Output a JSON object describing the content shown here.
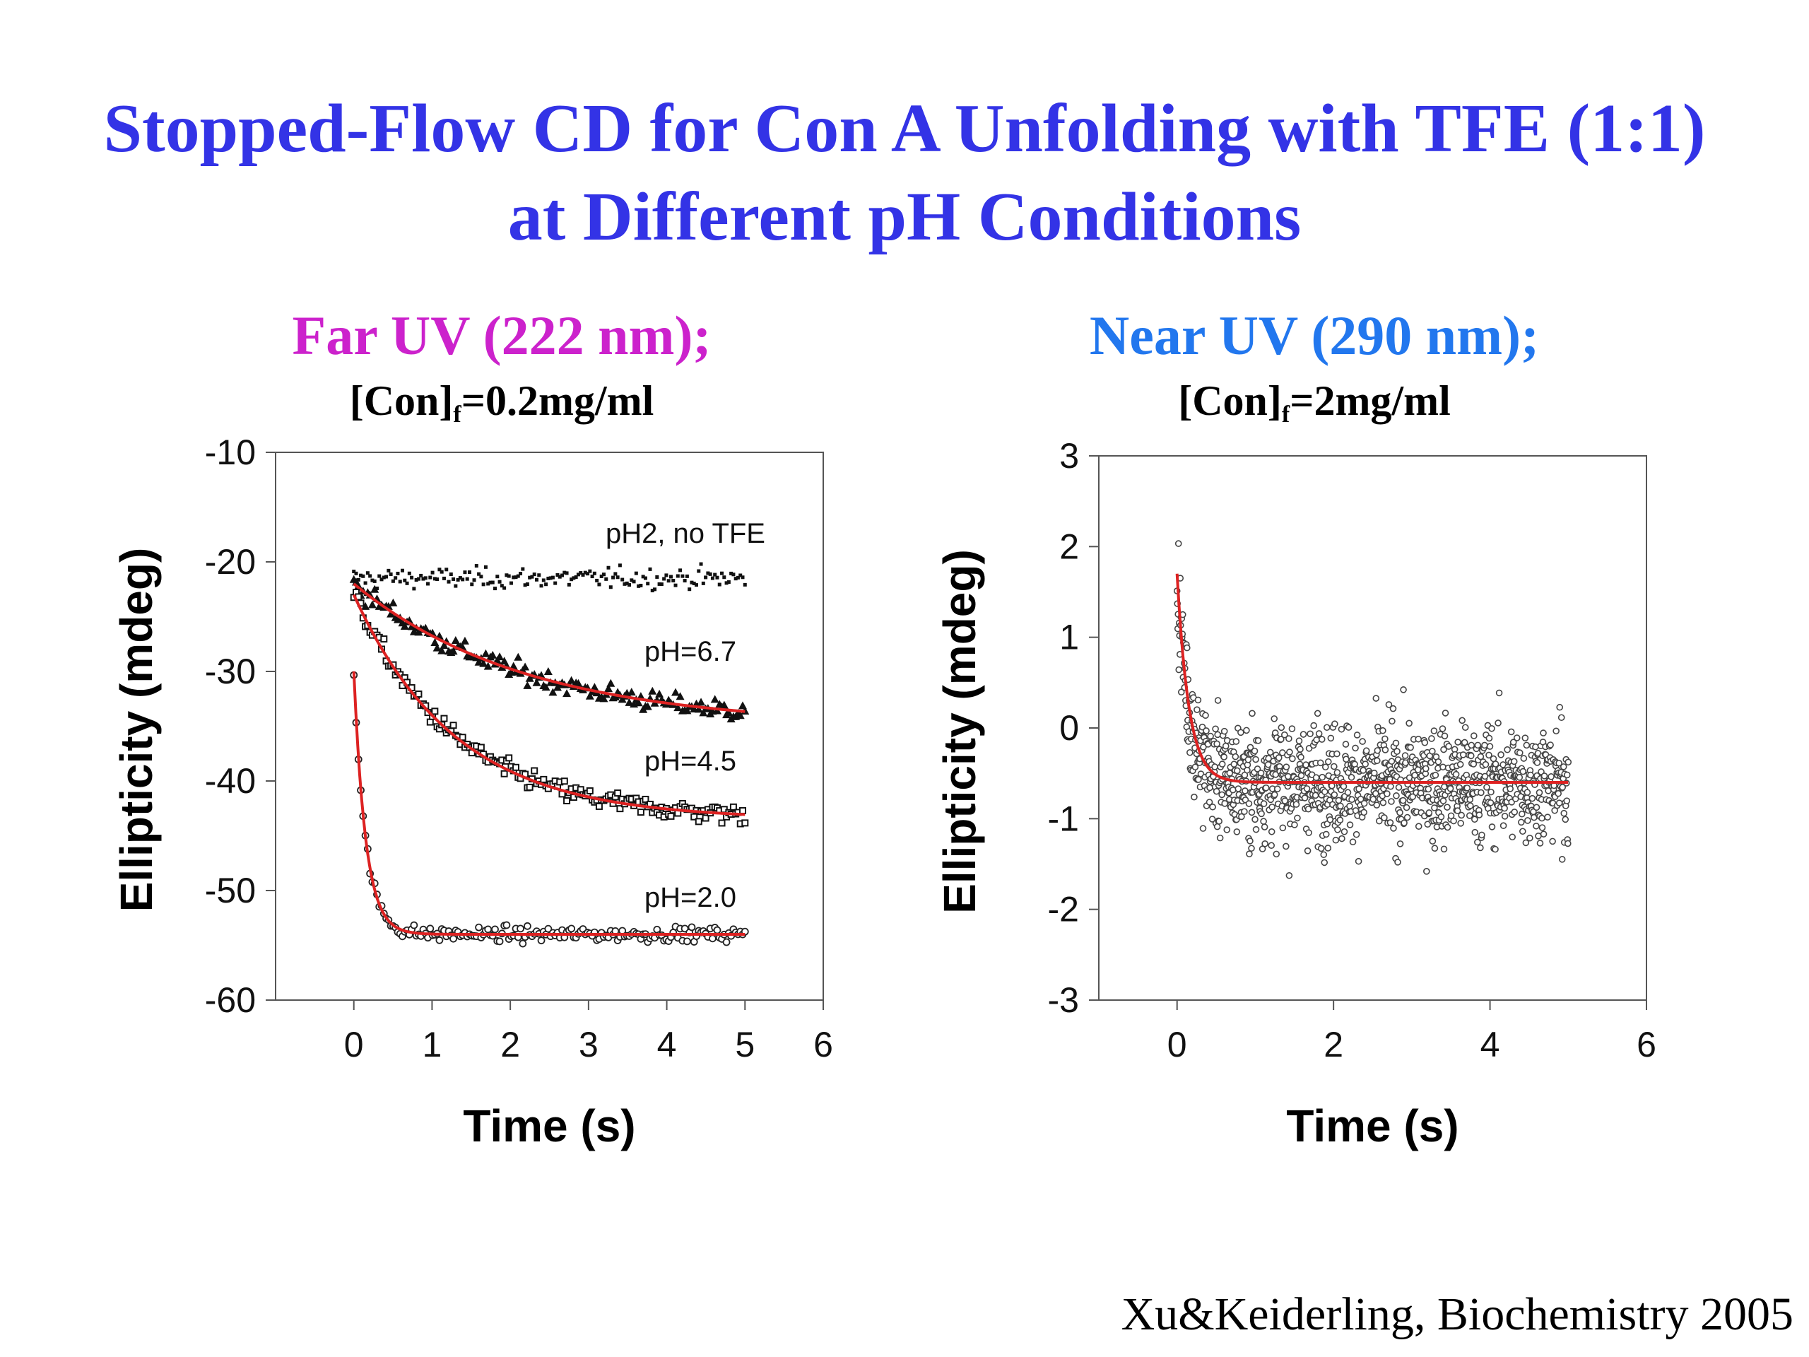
{
  "slide": {
    "title_line1": "Stopped-Flow CD for Con A Unfolding with TFE (1:1)",
    "title_line2": "at Different pH Conditions",
    "citation": "Xu&Keiderling, Biochemistry 2005",
    "title_color": "#3333e6"
  },
  "far_uv": {
    "heading": "Far UV (222 nm);",
    "heading_color": "#cc22cc",
    "conc_prefix": "[Con]",
    "conc_sub": "f",
    "conc_value": "=0.2mg/ml"
  },
  "near_uv": {
    "heading": "Near UV (290 nm);",
    "heading_color": "#2277ee",
    "conc_prefix": "[Con]",
    "conc_sub": "f",
    "conc_value": "=2mg/ml"
  },
  "chart_data": [
    {
      "type": "scatter",
      "xlabel": "Time (s)",
      "ylabel": "Ellipticity (mdeg)",
      "xlim": [
        -1,
        6
      ],
      "ylim": [
        -60,
        -10
      ],
      "xticks": [
        0,
        1,
        2,
        3,
        4,
        5,
        6
      ],
      "yticks": [
        -10,
        -20,
        -30,
        -40,
        -50,
        -60
      ],
      "fit_color": "#dd2222",
      "series": [
        {
          "name": "pH2, no TFE",
          "marker": "dot",
          "x_range": [
            0,
            5
          ],
          "start": -21.5,
          "end": -21.5,
          "tau": 1,
          "noise": 1.0,
          "fit": false
        },
        {
          "name": "pH=6.7",
          "marker": "triangle",
          "x_range": [
            0,
            5
          ],
          "start": -22,
          "end": -35,
          "tau": 2.2,
          "noise": 1.0,
          "fit": true
        },
        {
          "name": "pH=4.5",
          "marker": "square",
          "x_range": [
            0,
            5
          ],
          "start": -23,
          "end": -43.5,
          "tau": 1.3,
          "noise": 1.0,
          "fit": true
        },
        {
          "name": "pH=2.0",
          "marker": "circle",
          "x_range": [
            0,
            5
          ],
          "start": -30,
          "end": -54,
          "tau": 0.15,
          "noise": 0.7,
          "fit": true
        }
      ]
    },
    {
      "type": "scatter",
      "xlabel": "Time (s)",
      "ylabel": "Ellipticity (mdeg)",
      "xlim": [
        -1,
        6
      ],
      "ylim": [
        -3,
        3
      ],
      "xticks": [
        0,
        2,
        4,
        6
      ],
      "yticks": [
        3,
        2,
        1,
        0,
        -1,
        -2,
        -3
      ],
      "fit_color": "#dd2222",
      "series": [
        {
          "marker": "circle",
          "x_range": [
            0,
            5
          ],
          "start": 1.7,
          "end": -0.6,
          "tau": 0.15,
          "noise": 0.55,
          "fit": true
        }
      ]
    }
  ]
}
